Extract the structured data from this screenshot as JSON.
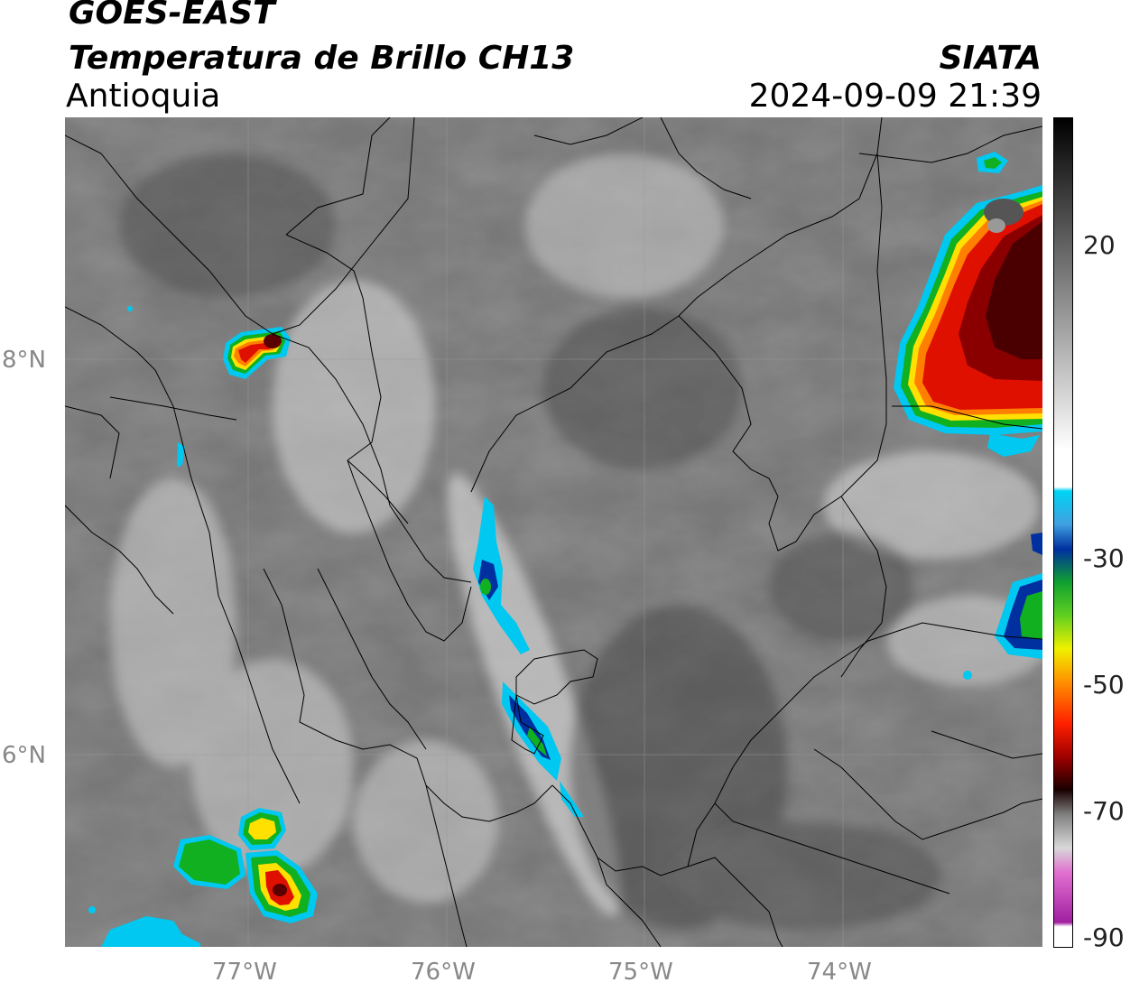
{
  "header": {
    "satellite": "GOES-EAST",
    "product": "Temperatura de Brillo CH13",
    "region": "Antioquia",
    "organization": "SIATA",
    "timestamp": "2024-09-09 21:39"
  },
  "map": {
    "lon_ticks": [
      "77°W",
      "76°W",
      "75°W",
      "74°W"
    ],
    "lat_ticks": [
      "8°N",
      "6°N"
    ],
    "lon_range": [
      -77.9,
      -73.0
    ],
    "lat_range": [
      4.9,
      9.1
    ]
  },
  "colorbar": {
    "tick_labels": [
      "20",
      "-30",
      "-50",
      "-70",
      "-90"
    ],
    "range": [
      -90,
      40
    ],
    "colors": {
      "cloud_top_cold": "#5a0000",
      "red": "#e01000",
      "orange": "#ff8000",
      "yellow": "#ffe000",
      "green": "#10b020",
      "blue": "#0030a0",
      "cyan": "#00c8f0",
      "magenta": "#c040c0",
      "ground_gray": "#7a7a7a"
    }
  }
}
